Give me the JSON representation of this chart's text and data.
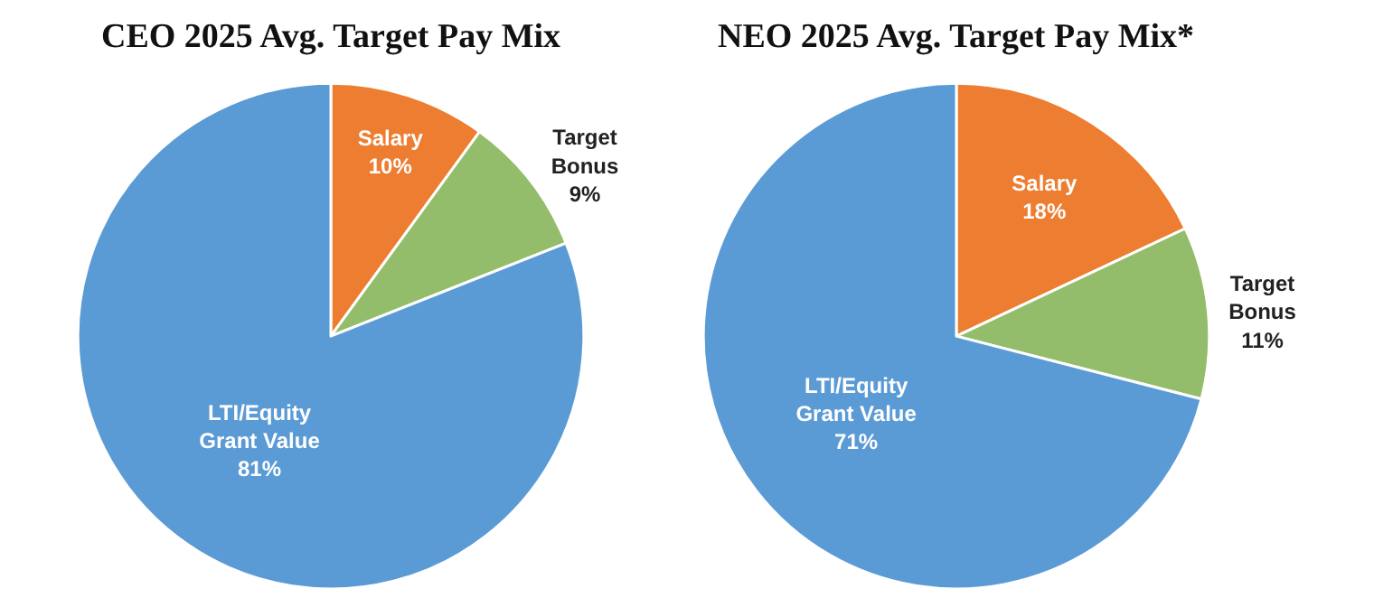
{
  "chart_data": [
    {
      "type": "pie",
      "title": "CEO 2025 Avg. Target Pay Mix",
      "categories": [
        "Salary",
        "Target Bonus",
        "LTI/Equity Grant Value"
      ],
      "values": [
        10,
        9,
        81
      ],
      "colors": [
        "#ed7d31",
        "#93bd6a",
        "#5b9bd5"
      ],
      "value_labels": [
        "10%",
        "9%",
        "81%"
      ]
    },
    {
      "type": "pie",
      "title": "NEO 2025 Avg. Target Pay Mix*",
      "categories": [
        "Salary",
        "Target Bonus",
        "LTI/Equity Grant Value"
      ],
      "values": [
        18,
        11,
        71
      ],
      "colors": [
        "#ed7d31",
        "#93bd6a",
        "#5b9bd5"
      ],
      "value_labels": [
        "18%",
        "11%",
        "71%"
      ]
    }
  ]
}
